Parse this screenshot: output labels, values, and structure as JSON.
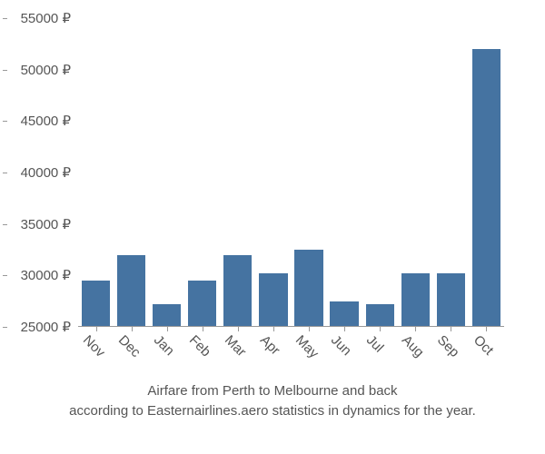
{
  "chart": {
    "type": "bar",
    "categories": [
      "Nov",
      "Dec",
      "Jan",
      "Feb",
      "Mar",
      "Apr",
      "May",
      "Jun",
      "Jul",
      "Aug",
      "Sep",
      "Oct"
    ],
    "values": [
      29500,
      32000,
      27200,
      29500,
      32000,
      30200,
      32500,
      27500,
      27200,
      30200,
      30200,
      52000
    ],
    "bar_color": "#4573a1",
    "background_color": "#ffffff",
    "y_axis": {
      "min": 25000,
      "max": 55000,
      "tick_step": 5000,
      "suffix": " ₽",
      "ticks": [
        25000,
        30000,
        35000,
        40000,
        45000,
        50000,
        55000
      ]
    },
    "label_color": "#555555",
    "label_fontsize": 15,
    "x_label_rotation": 45,
    "bar_width_ratio": 0.8,
    "tick_color": "#999999"
  },
  "caption": {
    "line1": "Airfare from Perth to Melbourne and back",
    "line2": "according to Easternairlines.aero statistics in dynamics for the year."
  }
}
